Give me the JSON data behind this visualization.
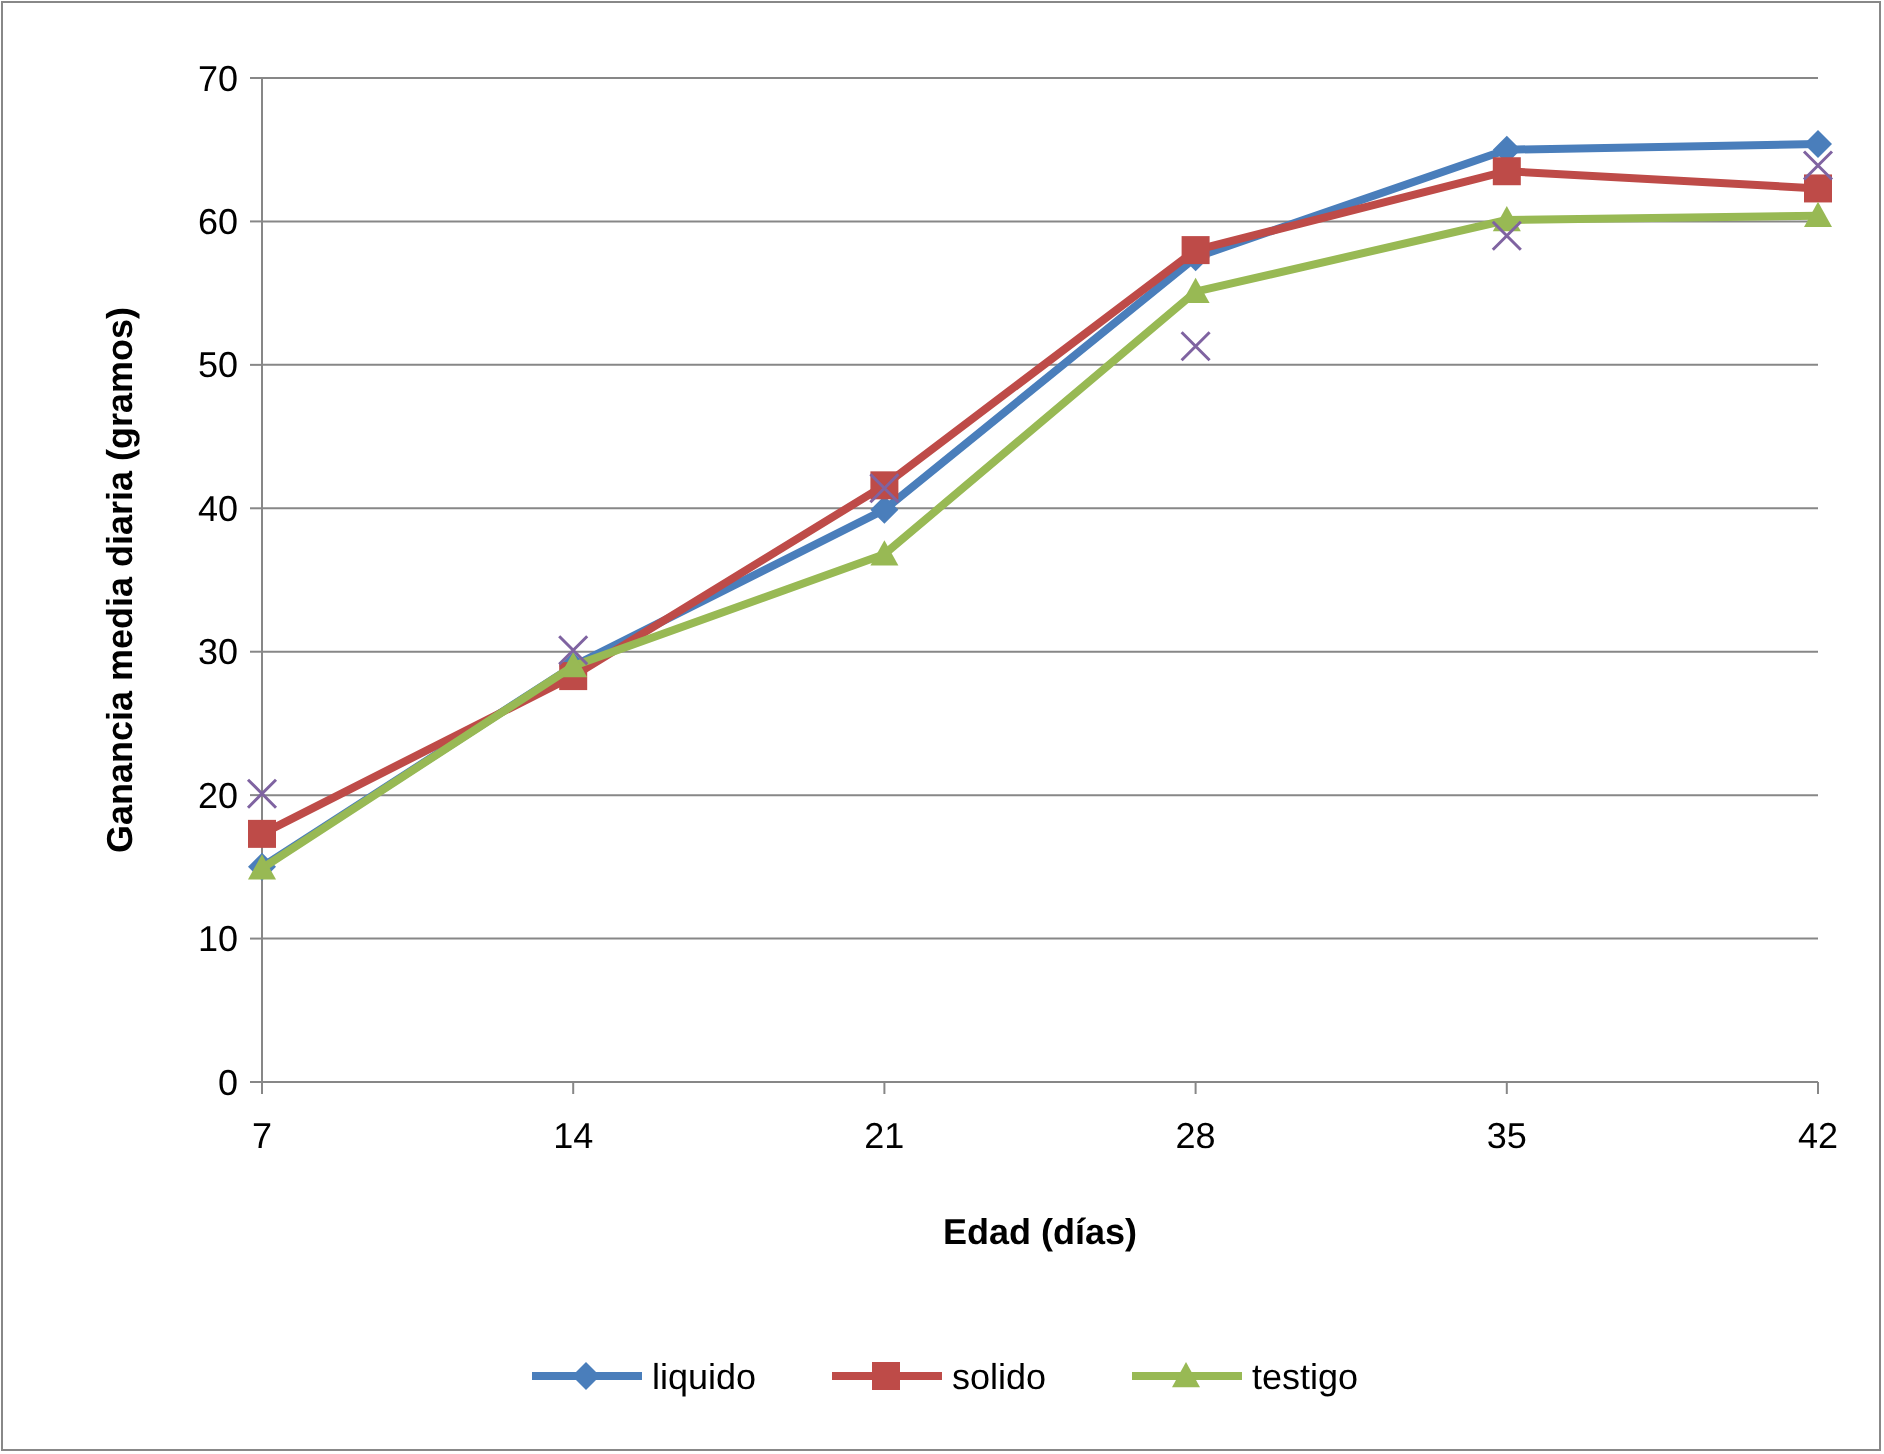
{
  "chart_data": {
    "type": "line",
    "xlabel": "Edad (días)",
    "ylabel": "Ganancia media diaria (gramos)",
    "x": [
      7,
      14,
      21,
      28,
      35,
      42
    ],
    "xlim": [
      7,
      42
    ],
    "xticks": [
      7,
      14,
      21,
      28,
      35,
      42
    ],
    "ylim": [
      0,
      70
    ],
    "yticks": [
      0,
      10,
      20,
      30,
      40,
      50,
      60,
      70
    ],
    "grid": "y",
    "legend": "bottom",
    "series": [
      {
        "name": "liquido",
        "color": "#4a7ebb",
        "marker": "diamond",
        "values": [
          15,
          29,
          39.9,
          57.5,
          65,
          65.4
        ]
      },
      {
        "name": "solido",
        "color": "#be4b48",
        "marker": "square",
        "values": [
          17.3,
          28.3,
          41.6,
          58,
          63.5,
          62.3
        ]
      },
      {
        "name": "testigo",
        "color": "#98b954",
        "marker": "triangle",
        "values": [
          14.9,
          29,
          36.8,
          55.1,
          60.1,
          60.4
        ]
      },
      {
        "type": "scatter",
        "color": "#7f63a1",
        "marker": "cross",
        "values": [
          20.1,
          30.1,
          41.4,
          51.3,
          59,
          63.9
        ]
      }
    ]
  }
}
